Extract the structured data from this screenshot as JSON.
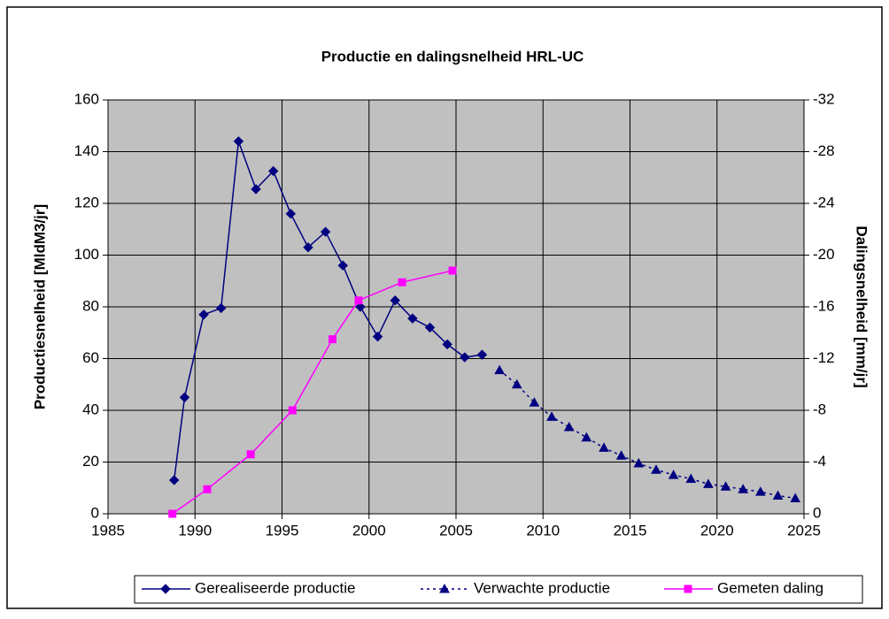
{
  "chart_data": {
    "type": "line",
    "title": "Productie en dalingsnelheid HRL-UC",
    "ylabel": "Productiesnelheid [MldM3/jr]",
    "y2label": "Dalingsnelheid [mm/jr]",
    "xlim": [
      1985,
      2025
    ],
    "xticks": [
      1985,
      1990,
      1995,
      2000,
      2005,
      2010,
      2015,
      2020,
      2025
    ],
    "ylim": [
      0,
      160
    ],
    "yticks": [
      0,
      20,
      40,
      60,
      80,
      100,
      120,
      140,
      160
    ],
    "y2lim": [
      0,
      -32
    ],
    "y2ticks": [
      0,
      -4,
      -8,
      -12,
      -16,
      -20,
      -24,
      -28,
      -32
    ],
    "grid": true,
    "legend": "bottom",
    "series": [
      {
        "name": "Gerealiseerde productie",
        "color": "#000080",
        "marker": "diamond",
        "dash": false,
        "x": [
          1988.8,
          1989.4,
          1990.5,
          1991.5,
          1992.5,
          1993.5,
          1994.5,
          1995.5,
          1996.5,
          1997.5,
          1998.5,
          1999.5,
          2000.5,
          2001.5,
          2002.5,
          2003.5,
          2004.5,
          2005.5,
          2006.5
        ],
        "values": [
          13,
          45,
          77,
          79.5,
          144,
          125.5,
          132.5,
          116,
          103,
          109,
          96,
          80,
          68.5,
          82.5,
          75.5,
          72,
          65.5,
          60.5,
          61.5
        ]
      },
      {
        "name": "Verwachte productie",
        "color": "#000080",
        "marker": "triangle",
        "dash": true,
        "x": [
          2007.5,
          2008.5,
          2009.5,
          2010.5,
          2011.5,
          2012.5,
          2013.5,
          2014.5,
          2015.5,
          2016.5,
          2017.5,
          2018.5,
          2019.5,
          2020.5,
          2021.5,
          2022.5,
          2023.5,
          2024.5
        ],
        "values": [
          55.5,
          50,
          43,
          37.5,
          33.5,
          29.5,
          25.5,
          22.5,
          19.5,
          17,
          15,
          13.5,
          11.5,
          10.5,
          9.5,
          8.5,
          7,
          6
        ]
      },
      {
        "name": "Gemeten daling",
        "color": "#ff00ff",
        "marker": "square",
        "dash": false,
        "axis": "y2",
        "x": [
          1988.7,
          1990.7,
          1993.2,
          1995.6,
          1997.9,
          1999.4,
          2001.9,
          2004.8
        ],
        "values": [
          0,
          -1.9,
          -4.6,
          -8,
          -13.5,
          -16.5,
          -17.9,
          -18.8
        ]
      }
    ]
  }
}
